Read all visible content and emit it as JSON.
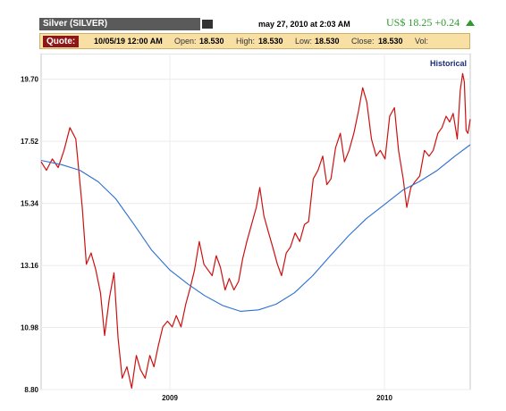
{
  "header": {
    "instrument": "Silver (SILVER)",
    "datetime": "may 27, 2010 at 2:03 AM",
    "price_now": "US$ 18.25 +0.24"
  },
  "quote": {
    "button": "Quote:",
    "timestamp": "10/05/19 12:00 AM",
    "open_label": "Open:",
    "open": "18.530",
    "high_label": "High:",
    "high": "18.530",
    "low_label": "Low:",
    "low": "18.530",
    "close_label": "Close:",
    "close": "18.530",
    "vol_label": "Vol:"
  },
  "colors": {
    "price": "#cc1111",
    "average": "#2d6fd1",
    "accent": "#2f9a2f",
    "quote_button": "#8f1616"
  },
  "chart_data": {
    "type": "line",
    "legend_label": "Historical",
    "x_range": [
      "2008-05-27",
      "2010-05-27"
    ],
    "x_ticks": [
      {
        "date": "2009-01-01",
        "label": "2009"
      },
      {
        "date": "2010-01-01",
        "label": "2010"
      }
    ],
    "y_ticks": [
      8.8,
      10.98,
      13.16,
      15.34,
      17.52,
      19.7
    ],
    "ylim": [
      8.8,
      20.6
    ],
    "grid": true,
    "series": [
      {
        "role": "price",
        "points": [
          [
            "2008-05-27",
            16.8
          ],
          [
            "2008-06-05",
            16.5
          ],
          [
            "2008-06-15",
            16.9
          ],
          [
            "2008-06-25",
            16.6
          ],
          [
            "2008-07-05",
            17.2
          ],
          [
            "2008-07-15",
            18.0
          ],
          [
            "2008-07-25",
            17.6
          ],
          [
            "2008-08-05",
            15.2
          ],
          [
            "2008-08-12",
            13.2
          ],
          [
            "2008-08-20",
            13.6
          ],
          [
            "2008-08-28",
            13.0
          ],
          [
            "2008-09-05",
            12.2
          ],
          [
            "2008-09-12",
            10.7
          ],
          [
            "2008-09-20",
            12.0
          ],
          [
            "2008-09-28",
            12.9
          ],
          [
            "2008-10-05",
            10.6
          ],
          [
            "2008-10-12",
            9.2
          ],
          [
            "2008-10-20",
            9.6
          ],
          [
            "2008-10-28",
            8.85
          ],
          [
            "2008-11-05",
            10.0
          ],
          [
            "2008-11-12",
            9.5
          ],
          [
            "2008-11-20",
            9.2
          ],
          [
            "2008-11-28",
            10.0
          ],
          [
            "2008-12-05",
            9.6
          ],
          [
            "2008-12-12",
            10.3
          ],
          [
            "2008-12-20",
            11.0
          ],
          [
            "2008-12-28",
            11.2
          ],
          [
            "2009-01-05",
            11.0
          ],
          [
            "2009-01-12",
            11.4
          ],
          [
            "2009-01-20",
            11.0
          ],
          [
            "2009-01-28",
            11.8
          ],
          [
            "2009-02-05",
            12.4
          ],
          [
            "2009-02-12",
            13.0
          ],
          [
            "2009-02-20",
            14.0
          ],
          [
            "2009-02-28",
            13.2
          ],
          [
            "2009-03-07",
            13.0
          ],
          [
            "2009-03-14",
            12.8
          ],
          [
            "2009-03-21",
            13.5
          ],
          [
            "2009-03-28",
            13.1
          ],
          [
            "2009-04-05",
            12.3
          ],
          [
            "2009-04-12",
            12.7
          ],
          [
            "2009-04-20",
            12.3
          ],
          [
            "2009-04-28",
            12.6
          ],
          [
            "2009-05-05",
            13.4
          ],
          [
            "2009-05-12",
            14.0
          ],
          [
            "2009-05-20",
            14.6
          ],
          [
            "2009-05-28",
            15.2
          ],
          [
            "2009-06-03",
            15.9
          ],
          [
            "2009-06-10",
            14.9
          ],
          [
            "2009-06-18",
            14.3
          ],
          [
            "2009-06-25",
            13.8
          ],
          [
            "2009-07-03",
            13.2
          ],
          [
            "2009-07-10",
            12.8
          ],
          [
            "2009-07-18",
            13.6
          ],
          [
            "2009-07-25",
            13.8
          ],
          [
            "2009-08-02",
            14.3
          ],
          [
            "2009-08-10",
            14.0
          ],
          [
            "2009-08-18",
            14.6
          ],
          [
            "2009-08-25",
            14.7
          ],
          [
            "2009-09-02",
            16.2
          ],
          [
            "2009-09-10",
            16.5
          ],
          [
            "2009-09-18",
            17.0
          ],
          [
            "2009-09-25",
            16.0
          ],
          [
            "2009-10-02",
            16.2
          ],
          [
            "2009-10-10",
            17.3
          ],
          [
            "2009-10-18",
            17.8
          ],
          [
            "2009-10-25",
            16.8
          ],
          [
            "2009-11-02",
            17.2
          ],
          [
            "2009-11-10",
            17.8
          ],
          [
            "2009-11-18",
            18.6
          ],
          [
            "2009-11-25",
            19.4
          ],
          [
            "2009-12-02",
            18.9
          ],
          [
            "2009-12-10",
            17.6
          ],
          [
            "2009-12-18",
            17.0
          ],
          [
            "2009-12-25",
            17.2
          ],
          [
            "2010-01-02",
            16.9
          ],
          [
            "2010-01-10",
            18.4
          ],
          [
            "2010-01-18",
            18.7
          ],
          [
            "2010-01-25",
            17.2
          ],
          [
            "2010-02-02",
            16.2
          ],
          [
            "2010-02-08",
            15.2
          ],
          [
            "2010-02-15",
            15.9
          ],
          [
            "2010-02-22",
            16.1
          ],
          [
            "2010-03-02",
            16.3
          ],
          [
            "2010-03-10",
            17.2
          ],
          [
            "2010-03-18",
            17.0
          ],
          [
            "2010-03-25",
            17.2
          ],
          [
            "2010-04-02",
            17.8
          ],
          [
            "2010-04-09",
            18.0
          ],
          [
            "2010-04-16",
            18.4
          ],
          [
            "2010-04-22",
            18.2
          ],
          [
            "2010-04-28",
            18.5
          ],
          [
            "2010-05-05",
            17.6
          ],
          [
            "2010-05-10",
            19.3
          ],
          [
            "2010-05-14",
            19.9
          ],
          [
            "2010-05-17",
            19.6
          ],
          [
            "2010-05-20",
            17.9
          ],
          [
            "2010-05-23",
            17.8
          ],
          [
            "2010-05-27",
            18.3
          ]
        ]
      },
      {
        "role": "average",
        "points": [
          [
            "2008-05-27",
            16.85
          ],
          [
            "2008-07-01",
            16.7
          ],
          [
            "2008-08-01",
            16.5
          ],
          [
            "2008-09-01",
            16.1
          ],
          [
            "2008-10-01",
            15.5
          ],
          [
            "2008-11-01",
            14.6
          ],
          [
            "2008-12-01",
            13.7
          ],
          [
            "2009-01-01",
            13.0
          ],
          [
            "2009-02-01",
            12.5
          ],
          [
            "2009-03-01",
            12.1
          ],
          [
            "2009-04-01",
            11.75
          ],
          [
            "2009-05-01",
            11.55
          ],
          [
            "2009-06-01",
            11.6
          ],
          [
            "2009-07-01",
            11.8
          ],
          [
            "2009-08-01",
            12.2
          ],
          [
            "2009-09-01",
            12.8
          ],
          [
            "2009-10-01",
            13.5
          ],
          [
            "2009-11-01",
            14.2
          ],
          [
            "2009-12-01",
            14.8
          ],
          [
            "2010-01-01",
            15.3
          ],
          [
            "2010-02-01",
            15.8
          ],
          [
            "2010-03-01",
            16.1
          ],
          [
            "2010-04-01",
            16.5
          ],
          [
            "2010-05-01",
            17.0
          ],
          [
            "2010-05-27",
            17.4
          ]
        ]
      }
    ]
  }
}
